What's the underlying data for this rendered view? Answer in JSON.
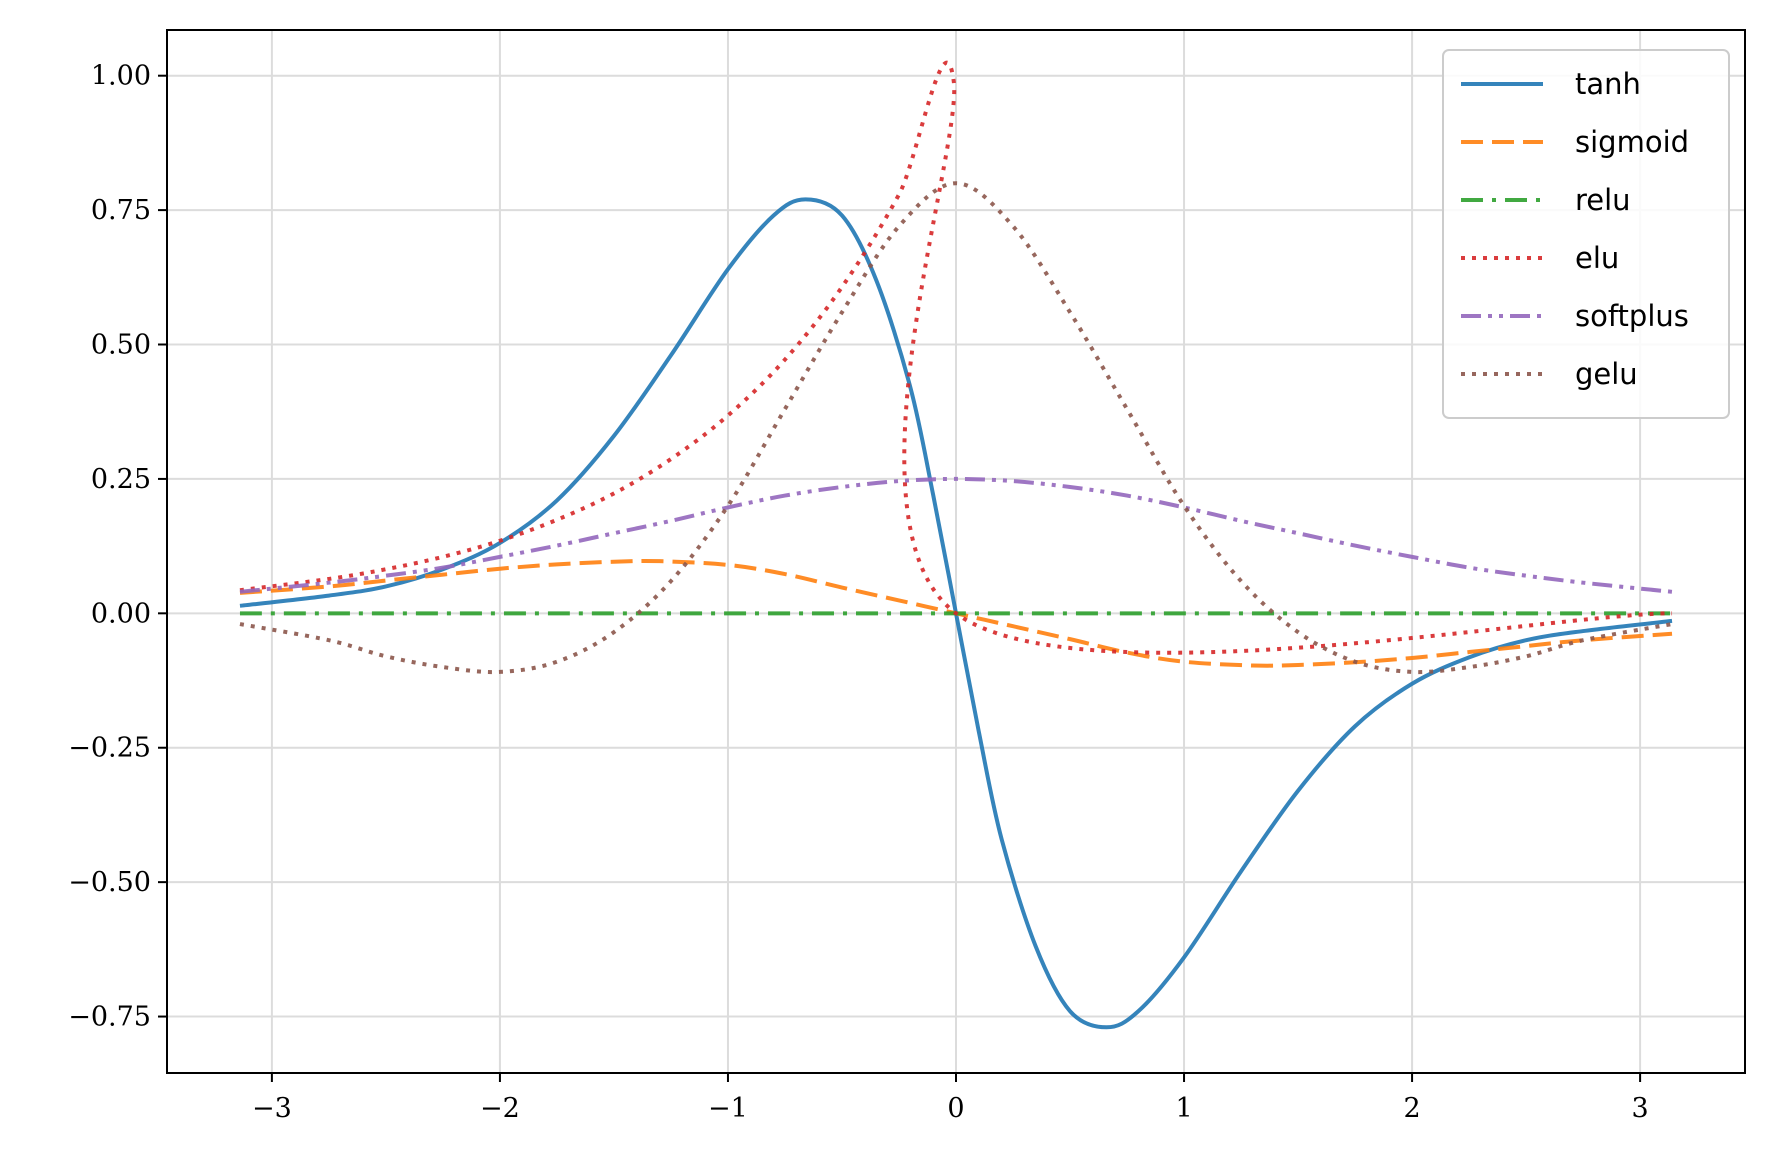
{
  "chart_data": {
    "type": "line",
    "title": "",
    "xlabel": "",
    "ylabel": "",
    "xlim": [
      -3.46,
      3.46
    ],
    "ylim": [
      -0.855,
      1.085
    ],
    "xticks": [
      -3,
      -2,
      -1,
      0,
      1,
      2,
      3
    ],
    "xtick_labels": [
      "−3",
      "−2",
      "−1",
      "0",
      "1",
      "2",
      "3"
    ],
    "yticks": [
      -0.75,
      -0.5,
      -0.25,
      0.0,
      0.25,
      0.5,
      0.75,
      1.0
    ],
    "ytick_labels": [
      "−0.75",
      "−0.50",
      "−0.25",
      "0.00",
      "0.25",
      "0.50",
      "0.75",
      "1.00"
    ],
    "grid": true,
    "legend_position": "top-right",
    "x_domain": [
      -3.14159,
      3.14159
    ],
    "series": [
      {
        "name": "tanh",
        "color": "#1f77b4",
        "style": "solid",
        "points": [
          [
            -3.14,
            0.014
          ],
          [
            -2.75,
            0.033
          ],
          [
            -2.5,
            0.05
          ],
          [
            -2.25,
            0.082
          ],
          [
            -2.0,
            0.131
          ],
          [
            -1.75,
            0.21
          ],
          [
            -1.5,
            0.33
          ],
          [
            -1.25,
            0.48
          ],
          [
            -1.0,
            0.64
          ],
          [
            -0.8,
            0.74
          ],
          [
            -0.66,
            0.77
          ],
          [
            -0.5,
            0.74
          ],
          [
            -0.35,
            0.62
          ],
          [
            -0.2,
            0.42
          ],
          [
            -0.1,
            0.22
          ],
          [
            0.0,
            0.0
          ],
          [
            0.1,
            -0.22
          ],
          [
            0.2,
            -0.42
          ],
          [
            0.35,
            -0.62
          ],
          [
            0.5,
            -0.74
          ],
          [
            0.66,
            -0.77
          ],
          [
            0.8,
            -0.74
          ],
          [
            1.0,
            -0.64
          ],
          [
            1.25,
            -0.48
          ],
          [
            1.5,
            -0.33
          ],
          [
            1.75,
            -0.21
          ],
          [
            2.0,
            -0.131
          ],
          [
            2.25,
            -0.082
          ],
          [
            2.5,
            -0.05
          ],
          [
            2.75,
            -0.033
          ],
          [
            3.14,
            -0.014
          ]
        ]
      },
      {
        "name": "sigmoid",
        "color": "#ff7f0e",
        "style": "dashed",
        "points": [
          [
            -3.14,
            0.038
          ],
          [
            -2.75,
            0.05
          ],
          [
            -2.5,
            0.061
          ],
          [
            -2.25,
            0.072
          ],
          [
            -2.0,
            0.083
          ],
          [
            -1.75,
            0.091
          ],
          [
            -1.5,
            0.096
          ],
          [
            -1.3,
            0.097
          ],
          [
            -1.0,
            0.09
          ],
          [
            -0.75,
            0.073
          ],
          [
            -0.5,
            0.048
          ],
          [
            -0.25,
            0.024
          ],
          [
            0.0,
            0.0
          ],
          [
            0.25,
            -0.024
          ],
          [
            0.5,
            -0.048
          ],
          [
            0.75,
            -0.073
          ],
          [
            1.0,
            -0.09
          ],
          [
            1.3,
            -0.097
          ],
          [
            1.5,
            -0.096
          ],
          [
            1.75,
            -0.091
          ],
          [
            2.0,
            -0.083
          ],
          [
            2.25,
            -0.072
          ],
          [
            2.5,
            -0.061
          ],
          [
            2.75,
            -0.05
          ],
          [
            3.14,
            -0.038
          ]
        ]
      },
      {
        "name": "relu",
        "color": "#2ca02c",
        "style": "dashdot",
        "points": [
          [
            -3.14,
            0.0
          ],
          [
            0.0,
            0.0
          ],
          [
            3.14,
            0.0
          ]
        ]
      },
      {
        "name": "elu",
        "color": "#d62728",
        "style": "dotted",
        "points": [
          [
            -3.14,
            0.043
          ],
          [
            -2.75,
            0.064
          ],
          [
            -2.5,
            0.082
          ],
          [
            -2.25,
            0.105
          ],
          [
            -2.0,
            0.135
          ],
          [
            -1.75,
            0.174
          ],
          [
            -1.5,
            0.223
          ],
          [
            -1.25,
            0.287
          ],
          [
            -1.0,
            0.368
          ],
          [
            -0.75,
            0.472
          ],
          [
            -0.5,
            0.607
          ],
          [
            -0.25,
            0.779
          ],
          [
            -0.01,
            0.99
          ],
          [
            0.0,
            0.0
          ],
          [
            3.14,
            0.0
          ]
        ]
      },
      {
        "name": "softplus",
        "color": "#9467bd",
        "style": "dashdotdot",
        "points": [
          [
            -3.14,
            0.04
          ],
          [
            -2.75,
            0.057
          ],
          [
            -2.5,
            0.07
          ],
          [
            -2.25,
            0.085
          ],
          [
            -2.0,
            0.105
          ],
          [
            -1.75,
            0.126
          ],
          [
            -1.5,
            0.149
          ],
          [
            -1.25,
            0.172
          ],
          [
            -1.0,
            0.197
          ],
          [
            -0.75,
            0.219
          ],
          [
            -0.5,
            0.235
          ],
          [
            -0.25,
            0.246
          ],
          [
            0.0,
            0.25
          ],
          [
            0.25,
            0.246
          ],
          [
            0.5,
            0.235
          ],
          [
            0.75,
            0.219
          ],
          [
            1.0,
            0.197
          ],
          [
            1.25,
            0.172
          ],
          [
            1.5,
            0.149
          ],
          [
            1.75,
            0.126
          ],
          [
            2.0,
            0.105
          ],
          [
            2.25,
            0.085
          ],
          [
            2.5,
            0.07
          ],
          [
            2.75,
            0.057
          ],
          [
            3.14,
            0.04
          ]
        ]
      },
      {
        "name": "gelu",
        "color": "#8c564b",
        "style": "dotted",
        "points": [
          [
            -3.14,
            -0.02
          ],
          [
            -2.75,
            -0.05
          ],
          [
            -2.5,
            -0.08
          ],
          [
            -2.25,
            -0.1
          ],
          [
            -2.0,
            -0.109
          ],
          [
            -1.75,
            -0.09
          ],
          [
            -1.5,
            -0.035
          ],
          [
            -1.25,
            0.06
          ],
          [
            -1.0,
            0.2
          ],
          [
            -0.75,
            0.38
          ],
          [
            -0.5,
            0.56
          ],
          [
            -0.25,
            0.72
          ],
          [
            0.0,
            0.8
          ],
          [
            0.25,
            0.72
          ],
          [
            0.5,
            0.56
          ],
          [
            0.75,
            0.38
          ],
          [
            1.0,
            0.2
          ],
          [
            1.25,
            0.06
          ],
          [
            1.5,
            -0.035
          ],
          [
            1.75,
            -0.09
          ],
          [
            2.0,
            -0.109
          ],
          [
            2.25,
            -0.1
          ],
          [
            2.5,
            -0.08
          ],
          [
            2.75,
            -0.05
          ],
          [
            3.14,
            -0.02
          ]
        ]
      }
    ]
  }
}
